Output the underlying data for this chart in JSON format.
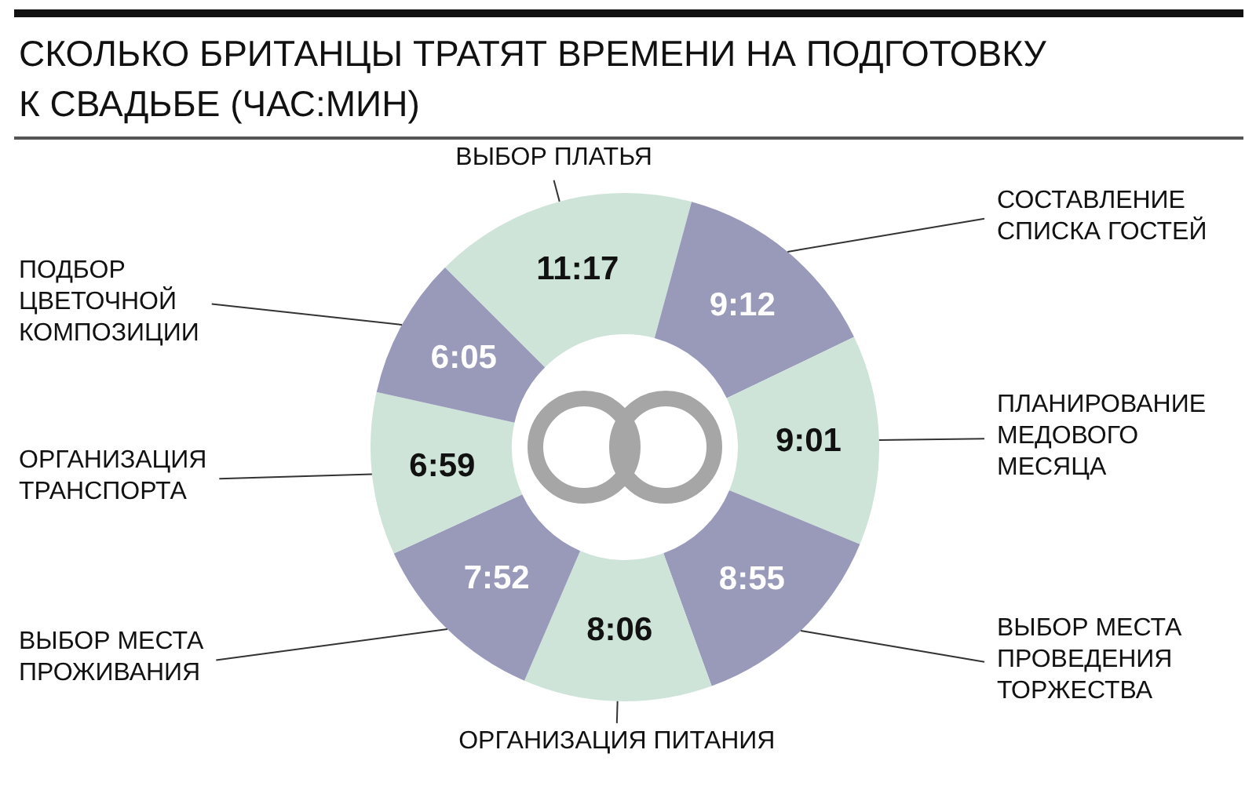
{
  "chart_data": {
    "type": "donut",
    "title": "СКОЛЬКО БРИТАНЦЫ ТРАТЯТ ВРЕМЕНИ НА ПОДГОТОВКУ К СВАДЬБЕ (ЧАС:МИН)",
    "categories": [
      "ВЫБОР ПЛАТЬЯ",
      "СОСТАВЛЕНИЕ СПИСКА ГОСТЕЙ",
      "ПЛАНИРОВАНИЕ МЕДОВОГО МЕСЯЦА",
      "ВЫБОР МЕСТА ПРОВЕДЕНИЯ ТОРЖЕСТВА",
      "ОРГАНИЗАЦИЯ ПИТАНИЯ",
      "ВЫБОР МЕСТА ПРОЖИВАНИЯ",
      "ОРГАНИЗАЦИЯ ТРАНСПОРТА",
      "ПОДБОР ЦВЕТОЧНОЙ КОМПОЗИЦИИ"
    ],
    "values": [
      677,
      552,
      541,
      535,
      486,
      472,
      419,
      365
    ],
    "value_labels": [
      "11:17",
      "9:12",
      "9:01",
      "8:55",
      "8:06",
      "7:52",
      "6:59",
      "6:05"
    ],
    "colors": [
      "#cee4d8",
      "#9999ba",
      "#cee4d8",
      "#9999ba",
      "#cee4d8",
      "#9999ba",
      "#cee4d8",
      "#9999ba"
    ]
  }
}
